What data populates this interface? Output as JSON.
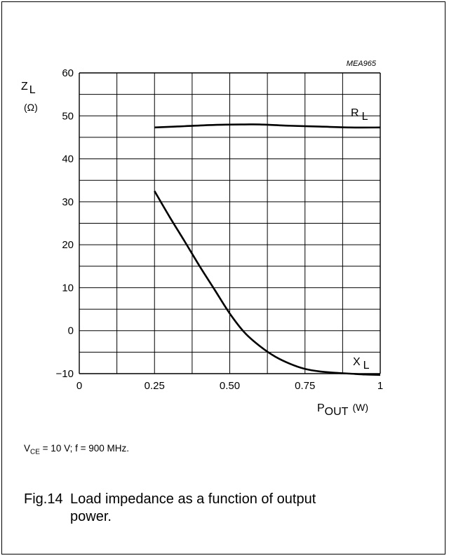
{
  "chart_data": {
    "type": "line",
    "code": "MEA965",
    "ylabel_main": "Z",
    "ylabel_sub": "L",
    "ylabel_unit": "(Ω)",
    "xlabel_main": "P",
    "xlabel_sub": "OUT",
    "xlabel_unit": "(W)",
    "xlim": [
      0,
      1
    ],
    "ylim": [
      -10,
      60
    ],
    "x_ticks": [
      {
        "v": 0,
        "label": "0"
      },
      {
        "v": 0.25,
        "label": "0.25"
      },
      {
        "v": 0.5,
        "label": "0.50"
      },
      {
        "v": 0.75,
        "label": "0.75"
      },
      {
        "v": 1,
        "label": "1"
      }
    ],
    "y_ticks": [
      {
        "v": -10,
        "label": "−10"
      },
      {
        "v": 0,
        "label": "0"
      },
      {
        "v": 10,
        "label": "10"
      },
      {
        "v": 20,
        "label": "20"
      },
      {
        "v": 30,
        "label": "30"
      },
      {
        "v": 40,
        "label": "40"
      },
      {
        "v": 50,
        "label": "50"
      },
      {
        "v": 60,
        "label": "60"
      }
    ],
    "grid": true,
    "series": [
      {
        "name_main": "R",
        "name_sub": "L",
        "x": [
          0.25,
          0.35,
          0.45,
          0.55,
          0.6,
          0.7,
          0.8,
          0.9,
          1.0
        ],
        "y": [
          47.3,
          47.6,
          47.9,
          48.0,
          48.0,
          47.7,
          47.5,
          47.3,
          47.3
        ]
      },
      {
        "name_main": "X",
        "name_sub": "L",
        "x": [
          0.25,
          0.3,
          0.35,
          0.4,
          0.45,
          0.5,
          0.55,
          0.6,
          0.65,
          0.7,
          0.75,
          0.8,
          0.85,
          0.9,
          0.95,
          1.0
        ],
        "y": [
          32.5,
          26.5,
          20.8,
          15.0,
          9.5,
          4.0,
          -0.5,
          -3.6,
          -6.0,
          -7.7,
          -8.9,
          -9.5,
          -9.8,
          -10.0,
          -10.2,
          -10.3
        ]
      }
    ]
  },
  "caption": {
    "v": "V",
    "v_sub": "CE",
    "rest": " = 10 V; f = 900 MHz."
  },
  "figure": {
    "number": "Fig.14",
    "title_line1": "Load impedance as a function of output",
    "title_line2": "power."
  }
}
